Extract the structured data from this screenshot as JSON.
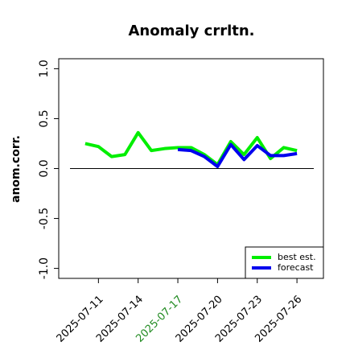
{
  "chart_data": {
    "type": "line",
    "title": "Anomaly crrltn.",
    "ylabel": "anom.corr.",
    "x": [
      "2025-07-10",
      "2025-07-11",
      "2025-07-12",
      "2025-07-13",
      "2025-07-14",
      "2025-07-15",
      "2025-07-16",
      "2025-07-17",
      "2025-07-18",
      "2025-07-19",
      "2025-07-20",
      "2025-07-21",
      "2025-07-22",
      "2025-07-23",
      "2025-07-24",
      "2025-07-25",
      "2025-07-26"
    ],
    "series": [
      {
        "name": "best est.",
        "color": "#00ee00",
        "values": [
          0.25,
          0.22,
          0.12,
          0.14,
          0.36,
          0.18,
          0.2,
          0.21,
          0.21,
          0.14,
          0.04,
          0.27,
          0.14,
          0.31,
          0.1,
          0.21,
          0.18
        ]
      },
      {
        "name": "forecast",
        "color": "#0000ee",
        "values": [
          null,
          null,
          null,
          null,
          null,
          null,
          null,
          0.19,
          0.18,
          0.12,
          0.02,
          0.24,
          0.09,
          0.23,
          0.13,
          0.13,
          0.15
        ]
      }
    ],
    "hline": 0,
    "xlim": [
      "2025-07-08",
      "2025-07-28"
    ],
    "xticks": [
      "2025-07-11",
      "2025-07-14",
      "2025-07-17",
      "2025-07-20",
      "2025-07-23",
      "2025-07-26"
    ],
    "xtick_colors": [
      "#000000",
      "#000000",
      "#228b22",
      "#000000",
      "#000000",
      "#000000"
    ],
    "ylim": [
      -1.1,
      1.1
    ],
    "yticks": [
      {
        "value": -1,
        "label": "-1.0"
      },
      {
        "value": -0.5,
        "label": "-0.5"
      },
      {
        "value": 0,
        "label": "0.0"
      },
      {
        "value": 0.5,
        "label": "0.5"
      },
      {
        "value": 1,
        "label": "1.0"
      }
    ],
    "legend": "bottom-right"
  }
}
